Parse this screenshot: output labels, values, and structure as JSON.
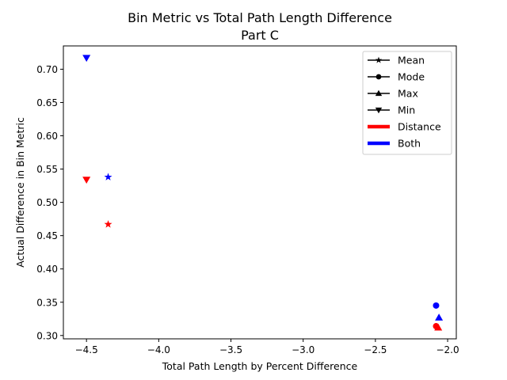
{
  "chart_data": {
    "type": "scatter",
    "title": "Bin Metric vs Total Path Length Difference",
    "subtitle": "Part C",
    "xlabel": "Total Path Length by Percent Difference",
    "ylabel": "Actual Difference in Bin Metric",
    "xlim": [
      -4.66,
      -1.94
    ],
    "ylim": [
      0.295,
      0.735
    ],
    "xticks": [
      -4.5,
      -4.0,
      -3.5,
      -3.0,
      -2.5,
      -2.0
    ],
    "xtick_labels": [
      "−4.5",
      "−4.0",
      "−3.5",
      "−3.0",
      "−2.5",
      "−2.0"
    ],
    "yticks": [
      0.3,
      0.35,
      0.4,
      0.45,
      0.5,
      0.55,
      0.6,
      0.65,
      0.7
    ],
    "ytick_labels": [
      "0.30",
      "0.35",
      "0.40",
      "0.45",
      "0.50",
      "0.55",
      "0.60",
      "0.65",
      "0.70"
    ],
    "grid": false,
    "legend_position": "top-right",
    "legend": [
      {
        "label": "Mean",
        "kind": "marker",
        "marker": "star"
      },
      {
        "label": "Mode",
        "kind": "marker",
        "marker": "circle"
      },
      {
        "label": "Max",
        "kind": "marker",
        "marker": "triangle-up"
      },
      {
        "label": "Min",
        "kind": "marker",
        "marker": "triangle-down"
      },
      {
        "label": "Distance",
        "kind": "color",
        "color": "#ff0000"
      },
      {
        "label": "Both",
        "kind": "color",
        "color": "#0000ff"
      }
    ],
    "points": [
      {
        "group": "Both",
        "stat": "Min",
        "marker": "triangle-down",
        "color": "#0000ff",
        "x": -4.5,
        "y": 0.717
      },
      {
        "group": "Both",
        "stat": "Mean",
        "marker": "star",
        "color": "#0000ff",
        "x": -4.35,
        "y": 0.538
      },
      {
        "group": "Distance",
        "stat": "Min",
        "marker": "triangle-down",
        "color": "#ff0000",
        "x": -4.5,
        "y": 0.534
      },
      {
        "group": "Distance",
        "stat": "Mean",
        "marker": "star",
        "color": "#ff0000",
        "x": -4.35,
        "y": 0.467
      },
      {
        "group": "Both",
        "stat": "Mode",
        "marker": "circle",
        "color": "#0000ff",
        "x": -2.08,
        "y": 0.345
      },
      {
        "group": "Both",
        "stat": "Max",
        "marker": "triangle-up",
        "color": "#0000ff",
        "x": -2.06,
        "y": 0.327
      },
      {
        "group": "Distance",
        "stat": "Mode",
        "marker": "circle",
        "color": "#ff0000",
        "x": -2.08,
        "y": 0.314
      },
      {
        "group": "Distance",
        "stat": "Max",
        "marker": "triangle-up",
        "color": "#ff0000",
        "x": -2.065,
        "y": 0.312
      }
    ]
  }
}
